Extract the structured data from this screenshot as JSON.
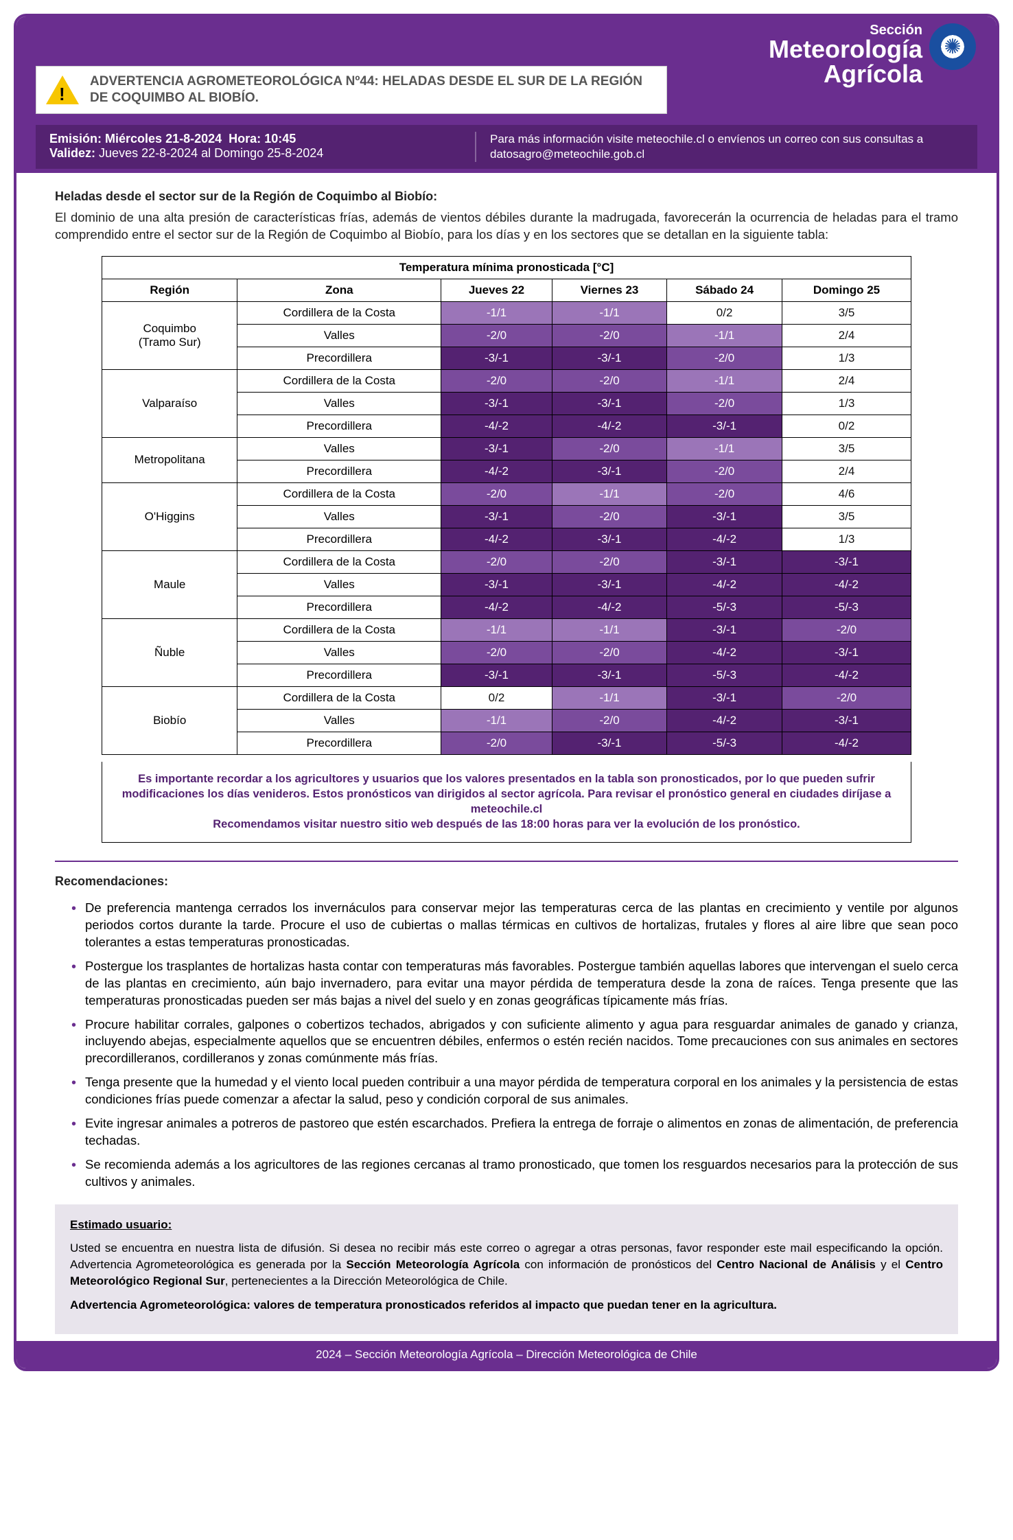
{
  "header": {
    "section_label": "Sección",
    "section_title_1": "Meteorología",
    "section_title_2": "Agrícola",
    "warning_title": "ADVERTENCIA AGROMETEOROLÓGICA Nº44: HELADAS DESDE EL SUR DE LA REGIÓN DE COQUIMBO AL BIOBÍO.",
    "emission_label": "Emisión:",
    "emission_value": "Miércoles 21-8-2024",
    "hour_label": "Hora:",
    "hour_value": "10:45",
    "validity_label": "Validez:",
    "validity_value": "Jueves 22-8-2024 al Domingo 25-8-2024",
    "more_info": "Para más información visite meteochile.cl o envíenos un correo con sus consultas a datosagro@meteochile.gob.cl"
  },
  "subtitle": "Heladas desde el sector sur de la Región de Coquimbo al Biobío:",
  "intro": "El dominio de una alta presión de características frías, además de vientos débiles durante la madrugada, favorecerán la ocurrencia de heladas para el tramo comprendido entre el sector sur de la Región de Coquimbo al Biobío, para los días y en los sectores que se detallan en la siguiente tabla:",
  "table": {
    "title": "Temperatura mínima pronosticada [°C]",
    "cols": [
      "Región",
      "Zona",
      "Jueves 22",
      "Viernes 23",
      "Sábado 24",
      "Domingo 25"
    ],
    "colors": {
      "dark": "#542271",
      "mid": "#7a4b9c",
      "light": "#9b75b8"
    },
    "regions": [
      {
        "name": "Coquimbo (Tramo Sur)",
        "zones": [
          {
            "z": "Cordillera de la Costa",
            "v": [
              "-1/1",
              "-1/1",
              "0/2",
              "3/5"
            ],
            "c": [
              "light",
              "light",
              "plain",
              "plain"
            ]
          },
          {
            "z": "Valles",
            "v": [
              "-2/0",
              "-2/0",
              "-1/1",
              "2/4"
            ],
            "c": [
              "mid",
              "mid",
              "light",
              "plain"
            ]
          },
          {
            "z": "Precordillera",
            "v": [
              "-3/-1",
              "-3/-1",
              "-2/0",
              "1/3"
            ],
            "c": [
              "dark",
              "dark",
              "mid",
              "plain"
            ]
          }
        ]
      },
      {
        "name": "Valparaíso",
        "zones": [
          {
            "z": "Cordillera de la Costa",
            "v": [
              "-2/0",
              "-2/0",
              "-1/1",
              "2/4"
            ],
            "c": [
              "mid",
              "mid",
              "light",
              "plain"
            ]
          },
          {
            "z": "Valles",
            "v": [
              "-3/-1",
              "-3/-1",
              "-2/0",
              "1/3"
            ],
            "c": [
              "dark",
              "dark",
              "mid",
              "plain"
            ]
          },
          {
            "z": "Precordillera",
            "v": [
              "-4/-2",
              "-4/-2",
              "-3/-1",
              "0/2"
            ],
            "c": [
              "dark",
              "dark",
              "dark",
              "plain"
            ]
          }
        ]
      },
      {
        "name": "Metropolitana",
        "zones": [
          {
            "z": "Valles",
            "v": [
              "-3/-1",
              "-2/0",
              "-1/1",
              "3/5"
            ],
            "c": [
              "dark",
              "mid",
              "light",
              "plain"
            ]
          },
          {
            "z": "Precordillera",
            "v": [
              "-4/-2",
              "-3/-1",
              "-2/0",
              "2/4"
            ],
            "c": [
              "dark",
              "dark",
              "mid",
              "plain"
            ]
          }
        ]
      },
      {
        "name": "O'Higgins",
        "zones": [
          {
            "z": "Cordillera de la Costa",
            "v": [
              "-2/0",
              "-1/1",
              "-2/0",
              "4/6"
            ],
            "c": [
              "mid",
              "light",
              "mid",
              "plain"
            ]
          },
          {
            "z": "Valles",
            "v": [
              "-3/-1",
              "-2/0",
              "-3/-1",
              "3/5"
            ],
            "c": [
              "dark",
              "mid",
              "dark",
              "plain"
            ]
          },
          {
            "z": "Precordillera",
            "v": [
              "-4/-2",
              "-3/-1",
              "-4/-2",
              "1/3"
            ],
            "c": [
              "dark",
              "dark",
              "dark",
              "plain"
            ]
          }
        ]
      },
      {
        "name": "Maule",
        "zones": [
          {
            "z": "Cordillera de la Costa",
            "v": [
              "-2/0",
              "-2/0",
              "-3/-1",
              "-3/-1"
            ],
            "c": [
              "mid",
              "mid",
              "dark",
              "dark"
            ]
          },
          {
            "z": "Valles",
            "v": [
              "-3/-1",
              "-3/-1",
              "-4/-2",
              "-4/-2"
            ],
            "c": [
              "dark",
              "dark",
              "dark",
              "dark"
            ]
          },
          {
            "z": "Precordillera",
            "v": [
              "-4/-2",
              "-4/-2",
              "-5/-3",
              "-5/-3"
            ],
            "c": [
              "dark",
              "dark",
              "dark",
              "dark"
            ]
          }
        ]
      },
      {
        "name": "Ñuble",
        "zones": [
          {
            "z": "Cordillera de la Costa",
            "v": [
              "-1/1",
              "-1/1",
              "-3/-1",
              "-2/0"
            ],
            "c": [
              "light",
              "light",
              "dark",
              "mid"
            ]
          },
          {
            "z": "Valles",
            "v": [
              "-2/0",
              "-2/0",
              "-4/-2",
              "-3/-1"
            ],
            "c": [
              "mid",
              "mid",
              "dark",
              "dark"
            ]
          },
          {
            "z": "Precordillera",
            "v": [
              "-3/-1",
              "-3/-1",
              "-5/-3",
              "-4/-2"
            ],
            "c": [
              "dark",
              "dark",
              "dark",
              "dark"
            ]
          }
        ]
      },
      {
        "name": "Biobío",
        "zones": [
          {
            "z": "Cordillera de la Costa",
            "v": [
              "0/2",
              "-1/1",
              "-3/-1",
              "-2/0"
            ],
            "c": [
              "plain",
              "light",
              "dark",
              "mid"
            ]
          },
          {
            "z": "Valles",
            "v": [
              "-1/1",
              "-2/0",
              "-4/-2",
              "-3/-1"
            ],
            "c": [
              "light",
              "mid",
              "dark",
              "dark"
            ]
          },
          {
            "z": "Precordillera",
            "v": [
              "-2/0",
              "-3/-1",
              "-5/-3",
              "-4/-2"
            ],
            "c": [
              "mid",
              "dark",
              "dark",
              "dark"
            ]
          }
        ]
      }
    ],
    "note_1": "Es importante recordar a los agricultores y usuarios que los valores presentados en la tabla son pronosticados, por lo que pueden sufrir modificaciones los días venideros. Estos pronósticos van dirigidos al sector agrícola. Para revisar el pronóstico general en ciudades diríjase a meteochile.cl",
    "note_2": "Recomendamos visitar nuestro sitio web después de las 18:00 horas para ver la evolución de los pronóstico."
  },
  "rec_title": "Recomendaciones:",
  "recs": [
    "De preferencia mantenga cerrados los invernáculos para conservar mejor las temperaturas cerca de las plantas en crecimiento y ventile por algunos periodos cortos durante la tarde. Procure el uso de cubiertas o mallas térmicas en cultivos de hortalizas, frutales y flores al aire libre que sean poco tolerantes a estas temperaturas pronosticadas.",
    "Postergue los trasplantes de hortalizas hasta contar con temperaturas más favorables. Postergue también aquellas labores que intervengan el suelo cerca de las plantas en crecimiento, aún bajo invernadero, para evitar una mayor pérdida de temperatura desde la zona de raíces. Tenga presente que las temperaturas pronosticadas pueden ser más bajas a nivel del suelo y en zonas geográficas típicamente más frías.",
    "Procure habilitar corrales, galpones o cobertizos techados, abrigados y con suficiente alimento y agua para resguardar animales de ganado y crianza, incluyendo abejas, especialmente aquellos que se encuentren débiles, enfermos o estén recién nacidos. Tome precauciones con sus animales en sectores precordilleranos, cordilleranos y zonas comúnmente más frías.",
    "Tenga presente que la humedad y el viento local pueden contribuir a una mayor pérdida de temperatura corporal en los animales y la persistencia de estas condiciones frías puede comenzar a afectar la salud, peso y condición corporal de sus animales.",
    "Evite ingresar animales a potreros de pastoreo que estén escarchados. Prefiera la entrega de forraje o alimentos en zonas de alimentación, de preferencia techadas.",
    "Se recomienda además a los agricultores de las regiones cercanas al tramo pronosticado, que tomen los resguardos necesarios para la protección de sus cultivos y animales."
  ],
  "user_box": {
    "title": "Estimado usuario:",
    "p1_a": "Usted se encuentra en nuestra lista de difusión. Si desea no recibir más este correo o agregar a otras personas, favor responder este mail especificando la opción. Advertencia Agrometeorológica es generada por la ",
    "p1_b1": "Sección Meteorología Agrícola",
    "p1_c": " con información de pronósticos del ",
    "p1_b2": "Centro Nacional de Análisis",
    "p1_d": " y el ",
    "p1_b3": "Centro Meteorológico Regional Sur",
    "p1_e": ", pertenecientes a la Dirección Meteorológica de Chile.",
    "p2": "Advertencia Agrometeorológica: valores de temperatura pronosticados referidos al impacto que puedan tener en la agricultura."
  },
  "footer": "2024 – Sección Meteorología Agrícola – Dirección Meteorológica de Chile"
}
